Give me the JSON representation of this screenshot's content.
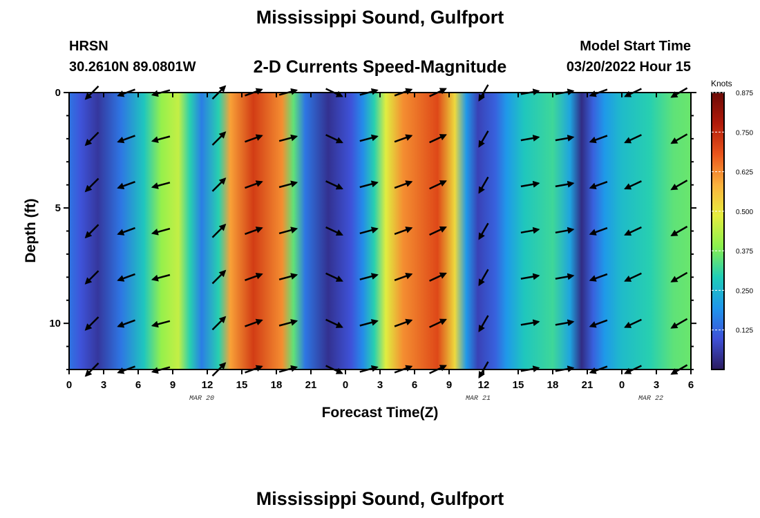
{
  "header": {
    "title": "Mississippi Sound, Gulfport",
    "station": "HRSN",
    "coordinates": "30.2610N  89.0801W",
    "subtitle": "2-D Currents Speed-Magnitude",
    "model_start_label": "Model Start Time",
    "model_start_value": "03/20/2022 Hour 15"
  },
  "footer": {
    "title": "Mississippi Sound, Gulfport"
  },
  "chart_data": {
    "type": "heatmap",
    "title": "2-D Currents Speed-Magnitude",
    "xlabel": "Forecast Time(Z)",
    "ylabel": "Depth (ft)",
    "x_ticks": [
      "0",
      "3",
      "6",
      "9",
      "12",
      "15",
      "18",
      "21",
      "0",
      "3",
      "6",
      "9",
      "12",
      "15",
      "18",
      "21",
      "0",
      "3",
      "6"
    ],
    "x_range_hours": [
      0,
      54
    ],
    "date_labels": [
      {
        "hour": 12,
        "text": "MAR 20"
      },
      {
        "hour": 36,
        "text": "MAR 21"
      },
      {
        "hour": 51,
        "text": "MAR 22"
      }
    ],
    "y_ticks": [
      "0",
      "5",
      "10"
    ],
    "y_range_ft": [
      0,
      12
    ],
    "y_inverted": true,
    "colorbar": {
      "label": "Knots",
      "ticks": [
        "0.875",
        "0.750",
        "0.625",
        "0.500",
        "0.375",
        "0.250",
        "0.125"
      ],
      "range": [
        0,
        0.875
      ],
      "colormap": [
        "#2b1b5e",
        "#3f51d8",
        "#1f96ec",
        "#1fcdb8",
        "#8af04e",
        "#e6ee3f",
        "#fbb13d",
        "#e9541c",
        "#b01a0a",
        "#6b0a06"
      ]
    },
    "speed_profile_knots": [
      {
        "hour": 0.0,
        "speed": 0.15
      },
      {
        "hour": 1.0,
        "speed": 0.1
      },
      {
        "hour": 2.5,
        "speed": 0.05
      },
      {
        "hour": 4.5,
        "speed": 0.15
      },
      {
        "hour": 6.5,
        "speed": 0.28
      },
      {
        "hour": 8.0,
        "speed": 0.4
      },
      {
        "hour": 9.5,
        "speed": 0.45
      },
      {
        "hour": 10.5,
        "speed": 0.3
      },
      {
        "hour": 11.5,
        "speed": 0.16
      },
      {
        "hour": 13.0,
        "speed": 0.3
      },
      {
        "hour": 14.0,
        "speed": 0.6
      },
      {
        "hour": 16.0,
        "speed": 0.72
      },
      {
        "hour": 18.5,
        "speed": 0.62
      },
      {
        "hour": 19.5,
        "speed": 0.35
      },
      {
        "hour": 20.5,
        "speed": 0.15
      },
      {
        "hour": 22.5,
        "speed": 0.04
      },
      {
        "hour": 24.5,
        "speed": 0.1
      },
      {
        "hour": 25.5,
        "speed": 0.18
      },
      {
        "hour": 26.5,
        "speed": 0.3
      },
      {
        "hour": 27.5,
        "speed": 0.48
      },
      {
        "hour": 29.0,
        "speed": 0.62
      },
      {
        "hour": 32.0,
        "speed": 0.7
      },
      {
        "hour": 33.5,
        "speed": 0.52
      },
      {
        "hour": 34.5,
        "speed": 0.2
      },
      {
        "hour": 35.5,
        "speed": 0.07
      },
      {
        "hour": 37.0,
        "speed": 0.12
      },
      {
        "hour": 38.0,
        "speed": 0.2
      },
      {
        "hour": 39.5,
        "speed": 0.28
      },
      {
        "hour": 42.0,
        "speed": 0.32
      },
      {
        "hour": 43.5,
        "speed": 0.22
      },
      {
        "hour": 44.5,
        "speed": 0.03
      },
      {
        "hour": 45.5,
        "speed": 0.12
      },
      {
        "hour": 46.5,
        "speed": 0.2
      },
      {
        "hour": 48.0,
        "speed": 0.26
      },
      {
        "hour": 50.5,
        "speed": 0.3
      },
      {
        "hour": 52.5,
        "speed": 0.35
      },
      {
        "hour": 54.0,
        "speed": 0.36
      }
    ],
    "vector_depths_ft": [
      0,
      2,
      4,
      6,
      8,
      10,
      12
    ],
    "vectors": [
      {
        "hour": 2,
        "dir_deg": 225
      },
      {
        "hour": 5,
        "dir_deg": 250
      },
      {
        "hour": 8,
        "dir_deg": 255
      },
      {
        "hour": 13,
        "dir_deg": 45
      },
      {
        "hour": 16,
        "dir_deg": 70
      },
      {
        "hour": 19,
        "dir_deg": 75
      },
      {
        "hour": 23,
        "dir_deg": 115
      },
      {
        "hour": 26,
        "dir_deg": 75
      },
      {
        "hour": 29,
        "dir_deg": 70
      },
      {
        "hour": 32,
        "dir_deg": 65
      },
      {
        "hour": 36,
        "dir_deg": 210
      },
      {
        "hour": 40,
        "dir_deg": 80
      },
      {
        "hour": 43,
        "dir_deg": 80
      },
      {
        "hour": 46,
        "dir_deg": 250
      },
      {
        "hour": 49,
        "dir_deg": 245
      },
      {
        "hour": 53,
        "dir_deg": 240
      }
    ]
  }
}
